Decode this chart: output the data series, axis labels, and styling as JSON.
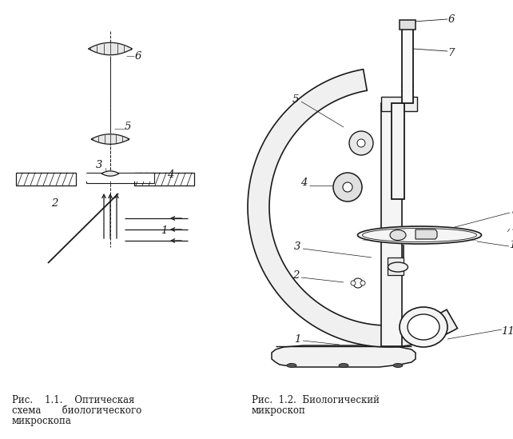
{
  "background_color": "#ffffff",
  "fig_width": 6.42,
  "fig_height": 5.49,
  "dpi": 100,
  "lc": "#1a1a1a",
  "lw": 1.0,
  "caption_left_line1": "Рис.    1.1.    Оптическая",
  "caption_left_line2": "схема       биологического",
  "caption_left_line3": "микроскопа",
  "caption_right_line1": "Рис.  1.2.  Биологический",
  "caption_right_line2": "микроскоп",
  "font_size_caption": 8.5,
  "font_size_label": 9.5
}
